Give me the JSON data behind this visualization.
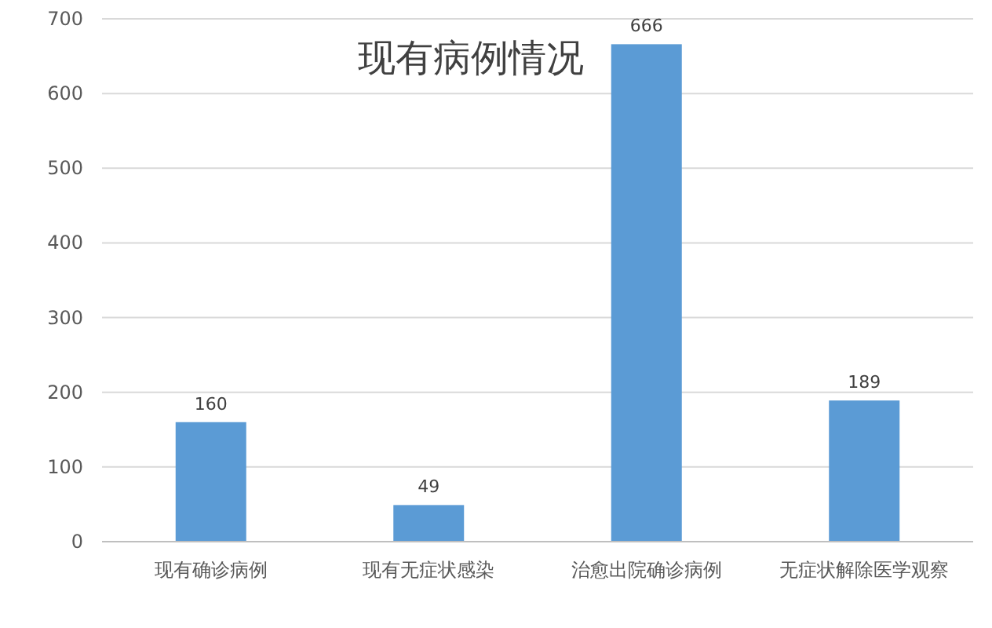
{
  "chart_data": {
    "type": "bar",
    "title": "现有病例情况",
    "categories": [
      "现有确诊病例",
      "现有无症状感染",
      "治愈出院确诊病例",
      "无症状解除医学观察"
    ],
    "values": [
      160,
      49,
      666,
      189
    ],
    "color": "#5b9bd5",
    "ylim": [
      0,
      700
    ],
    "yticks": [
      0,
      100,
      200,
      300,
      400,
      500,
      600,
      700
    ],
    "grid": "y",
    "data_labels": true
  }
}
